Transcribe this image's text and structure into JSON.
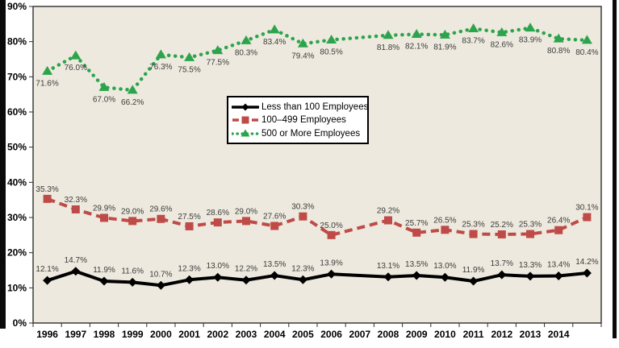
{
  "figure": {
    "background": "#ffffff",
    "plot_background": "#EDE9DE",
    "frame_color": "#0a0a0a",
    "data_label_color": "#3C3C3C",
    "axis_text_color": "#000000"
  },
  "chart_data": {
    "type": "line",
    "title": "",
    "xlabel": "",
    "ylabel": "",
    "ylim": [
      0,
      90
    ],
    "grid": false,
    "legend_position": "inside-upper-middle",
    "categories": [
      "1996",
      "1997",
      "1998",
      "1999",
      "2000",
      "2001",
      "2002",
      "2003",
      "2004",
      "2005",
      "2006",
      "2007",
      "2008",
      "2009",
      "2010",
      "2011",
      "2012",
      "2013",
      "2014",
      ""
    ],
    "y_tick_labels": [
      "0%",
      "10%",
      "20%",
      "30%",
      "40%",
      "50%",
      "60%",
      "70%",
      "80%",
      "90%"
    ],
    "note": "no data markers shown for 2007; lines interpolate through",
    "series": [
      {
        "name": "Less than 100 Employees",
        "color": "#000000",
        "marker": "diamond",
        "line_style": "solid",
        "label_position": "above",
        "values": [
          12.1,
          14.7,
          11.9,
          11.6,
          10.7,
          12.3,
          13.0,
          12.2,
          13.5,
          12.3,
          13.9,
          null,
          13.1,
          13.5,
          13.0,
          11.9,
          13.7,
          13.3,
          13.4,
          14.2
        ]
      },
      {
        "name": "100–499 Employees",
        "color": "#BE4B47",
        "marker": "square",
        "line_style": "dashed",
        "label_position": "above",
        "values": [
          35.3,
          32.3,
          29.9,
          29.0,
          29.6,
          27.5,
          28.6,
          29.0,
          27.6,
          30.3,
          25.0,
          null,
          29.2,
          25.7,
          26.5,
          25.3,
          25.2,
          25.3,
          26.4,
          30.1
        ]
      },
      {
        "name": "500 or More Employees",
        "color": "#2CA44C",
        "marker": "triangle",
        "line_style": "dotted",
        "label_position": "below",
        "values": [
          71.6,
          76.0,
          67.0,
          66.2,
          76.3,
          75.5,
          77.5,
          80.3,
          83.4,
          79.4,
          80.5,
          null,
          81.8,
          82.1,
          81.9,
          83.7,
          82.6,
          83.9,
          80.8,
          80.4
        ]
      }
    ]
  }
}
